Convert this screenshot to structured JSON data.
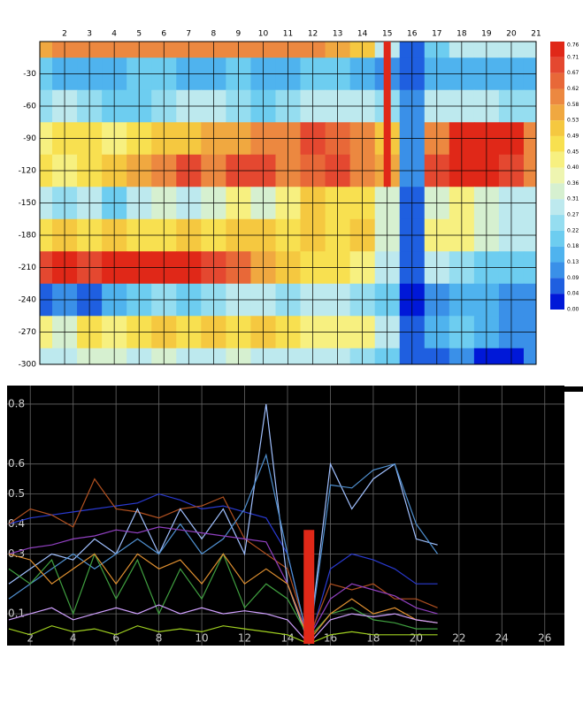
{
  "chart_data": [
    {
      "type": "contour",
      "x": [
        1,
        2,
        3,
        4,
        5,
        6,
        7,
        8,
        9,
        10,
        11,
        12,
        13,
        14,
        15,
        16,
        17,
        18,
        19,
        20,
        21
      ],
      "y": [
        0,
        -30,
        -60,
        -90,
        -120,
        -150,
        -180,
        -210,
        -240,
        -270,
        -300
      ],
      "z": [
        [
          0.55,
          0.6,
          0.6,
          0.6,
          0.6,
          0.6,
          0.6,
          0.6,
          0.6,
          0.6,
          0.6,
          0.6,
          0.55,
          0.5,
          0.3,
          0.05,
          0.2,
          0.3,
          0.3,
          0.3,
          0.3
        ],
        [
          0.2,
          0.15,
          0.15,
          0.15,
          0.2,
          0.2,
          0.15,
          0.15,
          0.2,
          0.15,
          0.15,
          0.2,
          0.2,
          0.15,
          0.1,
          0.05,
          0.15,
          0.15,
          0.15,
          0.15,
          0.15
        ],
        [
          0.25,
          0.3,
          0.25,
          0.2,
          0.2,
          0.25,
          0.3,
          0.3,
          0.25,
          0.2,
          0.25,
          0.3,
          0.3,
          0.3,
          0.25,
          0.1,
          0.3,
          0.3,
          0.3,
          0.25,
          0.25
        ],
        [
          0.4,
          0.45,
          0.45,
          0.4,
          0.45,
          0.5,
          0.5,
          0.55,
          0.55,
          0.6,
          0.6,
          0.7,
          0.65,
          0.6,
          0.5,
          0.1,
          0.6,
          0.75,
          0.76,
          0.75,
          0.6
        ],
        [
          0.45,
          0.4,
          0.45,
          0.5,
          0.55,
          0.6,
          0.7,
          0.6,
          0.7,
          0.7,
          0.6,
          0.65,
          0.7,
          0.6,
          0.55,
          0.1,
          0.7,
          0.72,
          0.75,
          0.7,
          0.6
        ],
        [
          0.3,
          0.25,
          0.3,
          0.2,
          0.3,
          0.35,
          0.3,
          0.35,
          0.4,
          0.35,
          0.4,
          0.5,
          0.45,
          0.45,
          0.35,
          0.05,
          0.35,
          0.4,
          0.35,
          0.3,
          0.3
        ],
        [
          0.45,
          0.5,
          0.45,
          0.5,
          0.45,
          0.45,
          0.5,
          0.45,
          0.5,
          0.5,
          0.45,
          0.5,
          0.45,
          0.5,
          0.35,
          0.05,
          0.4,
          0.4,
          0.35,
          0.3,
          0.3
        ],
        [
          0.7,
          0.72,
          0.7,
          0.72,
          0.74,
          0.72,
          0.72,
          0.7,
          0.65,
          0.55,
          0.5,
          0.45,
          0.45,
          0.4,
          0.3,
          0.04,
          0.3,
          0.25,
          0.2,
          0.2,
          0.2
        ],
        [
          0.05,
          0.1,
          0.08,
          0.15,
          0.2,
          0.25,
          0.2,
          0.25,
          0.3,
          0.3,
          0.25,
          0.3,
          0.3,
          0.25,
          0.2,
          0.02,
          0.1,
          0.15,
          0.15,
          0.1,
          0.1
        ],
        [
          0.4,
          0.35,
          0.45,
          0.4,
          0.45,
          0.5,
          0.45,
          0.5,
          0.45,
          0.5,
          0.45,
          0.4,
          0.4,
          0.4,
          0.3,
          0.04,
          0.15,
          0.2,
          0.15,
          0.1,
          0.1
        ],
        [
          0.3,
          0.3,
          0.35,
          0.35,
          0.3,
          0.35,
          0.3,
          0.3,
          0.35,
          0.3,
          0.3,
          0.3,
          0.3,
          0.25,
          0.2,
          0.05,
          0.05,
          0.1,
          0.02,
          0.02,
          0.1
        ]
      ],
      "xlim": [
        1,
        21
      ],
      "xticks": [
        2,
        3,
        4,
        5,
        6,
        7,
        8,
        9,
        10,
        11,
        12,
        13,
        14,
        15,
        16,
        17,
        18,
        19,
        20,
        21
      ],
      "ylim": [
        0,
        -300
      ],
      "yticks": [
        -30,
        -60,
        -90,
        -120,
        -150,
        -180,
        -210,
        -240,
        -270,
        -300
      ],
      "levels": [
        0.76,
        0.71,
        0.67,
        0.62,
        0.58,
        0.53,
        0.49,
        0.45,
        {
          "value": 0.4,
          "label": "0.40"
        },
        0.36,
        0.31,
        0.27,
        0.22,
        0.18,
        0.13,
        {
          "value": 0.09,
          "label": "0.09"
        },
        {
          "value": 0.04,
          "label": "0.04"
        },
        {
          "value": 0,
          "label": "0.00"
        }
      ],
      "colorscale": [
        "#e02818",
        "#e44830",
        "#e86838",
        "#ec8840",
        "#f0a840",
        "#f5c840",
        "#f8e050",
        "#f7f080",
        "#eef5b0",
        "#d6f0d0",
        "#bde9ee",
        "#95ddf0",
        "#6dcdf0",
        "#4fb3ee",
        "#3a90e8",
        "#1f5fe0",
        "#0018d8"
      ],
      "highlight_x": 15,
      "highlight_ylim": [
        0,
        -135
      ],
      "highlight_color": "#e02818"
    },
    {
      "type": "line",
      "x": [
        1,
        2,
        3,
        4,
        5,
        6,
        7,
        8,
        9,
        10,
        11,
        12,
        13,
        14,
        15,
        16,
        17,
        18,
        19,
        20,
        21
      ],
      "series": [
        {
          "color": "#2a3ad0",
          "values": [
            0.4,
            0.42,
            0.43,
            0.44,
            0.45,
            0.46,
            0.47,
            0.5,
            0.48,
            0.45,
            0.46,
            0.44,
            0.42,
            0.3,
            0.0,
            0.25,
            0.3,
            0.28,
            0.25,
            0.2,
            0.2
          ]
        },
        {
          "color": "#b05020",
          "values": [
            0.4,
            0.45,
            0.43,
            0.39,
            0.55,
            0.45,
            0.44,
            0.42,
            0.45,
            0.46,
            0.49,
            0.35,
            0.3,
            0.25,
            0.02,
            0.2,
            0.18,
            0.2,
            0.15,
            0.15,
            0.12
          ]
        },
        {
          "color": "#a0c0ff",
          "values": [
            0.2,
            0.25,
            0.3,
            0.28,
            0.35,
            0.3,
            0.45,
            0.3,
            0.45,
            0.35,
            0.45,
            0.3,
            0.8,
            0.2,
            0.0,
            0.6,
            0.45,
            0.55,
            0.6,
            0.35,
            0.33
          ]
        },
        {
          "color": "#5090d0",
          "values": [
            0.15,
            0.2,
            0.25,
            0.3,
            0.25,
            0.3,
            0.35,
            0.3,
            0.4,
            0.3,
            0.35,
            0.45,
            0.63,
            0.3,
            0.0,
            0.53,
            0.52,
            0.58,
            0.6,
            0.4,
            0.3
          ]
        },
        {
          "color": "#9040c0",
          "values": [
            0.3,
            0.32,
            0.33,
            0.35,
            0.36,
            0.38,
            0.37,
            0.39,
            0.38,
            0.37,
            0.36,
            0.35,
            0.34,
            0.2,
            0.02,
            0.15,
            0.2,
            0.18,
            0.16,
            0.12,
            0.1
          ]
        },
        {
          "color": "#40a040",
          "values": [
            0.25,
            0.2,
            0.28,
            0.1,
            0.3,
            0.15,
            0.28,
            0.1,
            0.25,
            0.15,
            0.3,
            0.12,
            0.2,
            0.15,
            0.02,
            0.1,
            0.12,
            0.08,
            0.07,
            0.05,
            0.05
          ]
        },
        {
          "color": "#e09030",
          "values": [
            0.3,
            0.28,
            0.2,
            0.25,
            0.3,
            0.2,
            0.3,
            0.25,
            0.28,
            0.2,
            0.3,
            0.2,
            0.25,
            0.2,
            0.01,
            0.1,
            0.15,
            0.1,
            0.12,
            0.08,
            0.07
          ]
        },
        {
          "color": "#d0a0ff",
          "values": [
            0.08,
            0.1,
            0.12,
            0.08,
            0.1,
            0.12,
            0.1,
            0.13,
            0.1,
            0.12,
            0.1,
            0.11,
            0.1,
            0.08,
            0.0,
            0.08,
            0.1,
            0.09,
            0.1,
            0.08,
            0.07
          ]
        },
        {
          "color": "#a0d020",
          "values": [
            0.05,
            0.03,
            0.06,
            0.04,
            0.05,
            0.03,
            0.06,
            0.04,
            0.05,
            0.04,
            0.06,
            0.05,
            0.04,
            0.03,
            0.0,
            0.03,
            0.04,
            0.03,
            0.03,
            0.03,
            0.03
          ]
        }
      ],
      "xlim": [
        1,
        27
      ],
      "xticks": [
        2,
        4,
        6,
        8,
        10,
        12,
        14,
        16,
        18,
        20,
        22,
        24,
        26
      ],
      "ylim": [
        0,
        0.85
      ],
      "yticks": [
        0.8,
        0.6,
        0.5,
        0.4,
        0.3,
        0.1
      ],
      "highlight_x": 15,
      "highlight_value": 0.38,
      "highlight_color": "#e02818"
    }
  ]
}
